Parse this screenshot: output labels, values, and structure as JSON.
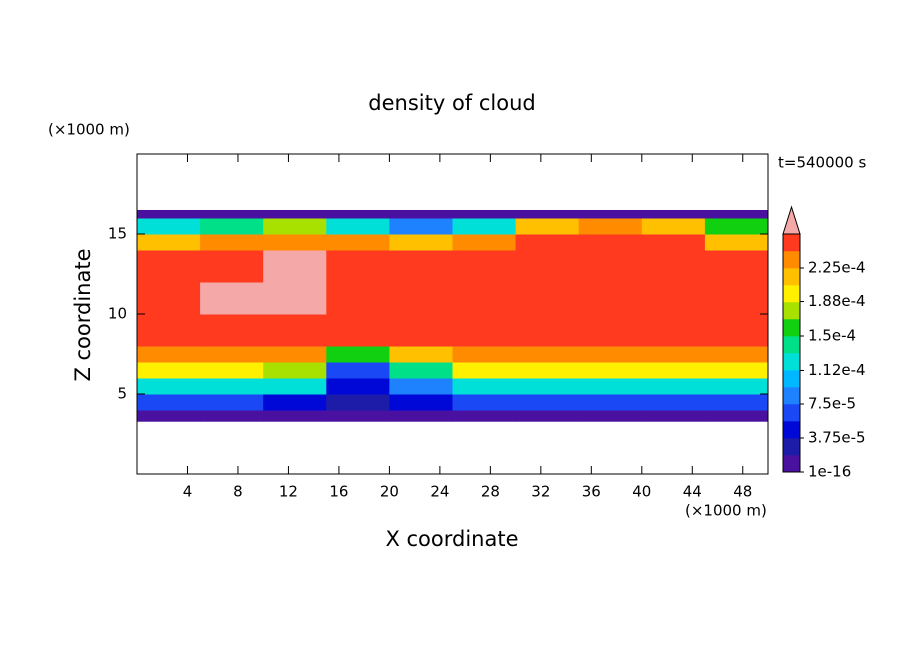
{
  "chart_data": {
    "type": "contour",
    "title": "density of cloud",
    "x_label": "X coordinate",
    "y_label": "Z coordinate",
    "x_unit": "(×1000 m)",
    "y_unit": "(×1000 m)",
    "time_label": "t=540000 s",
    "xlim": [
      0,
      50
    ],
    "ylim": [
      0,
      20
    ],
    "xticks": [
      4,
      8,
      12,
      16,
      20,
      24,
      28,
      32,
      36,
      40,
      44,
      48
    ],
    "yticks": [
      5,
      10,
      15
    ],
    "x_edges": [
      0,
      5,
      10,
      15,
      20,
      25,
      30,
      35,
      40,
      45,
      50
    ],
    "z_edges": [
      3.3,
      4,
      5,
      6,
      7,
      8,
      10,
      12,
      14,
      15,
      16,
      16.5
    ],
    "z_values": [
      [
        1e-05,
        1e-05,
        1e-05,
        1e-05,
        1e-05,
        1e-05,
        1e-05,
        1e-05,
        1e-05,
        1e-05
      ],
      [
        6e-05,
        6e-05,
        5e-05,
        3e-05,
        4e-05,
        7e-05,
        7e-05,
        7e-05,
        7e-05,
        7e-05
      ],
      [
        0.00013,
        0.00013,
        0.00012,
        4e-05,
        8e-05,
        0.00013,
        0.00013,
        0.00013,
        0.00013,
        0.00013
      ],
      [
        0.00019,
        0.00019,
        0.00017,
        6e-05,
        0.00014,
        0.00019,
        0.00019,
        0.00019,
        0.00019,
        0.00019
      ],
      [
        0.00023,
        0.00023,
        0.00023,
        0.00015,
        0.00022,
        0.00023,
        0.00023,
        0.00023,
        0.00023,
        0.00023
      ],
      [
        0.00025,
        0.00025,
        0.00025,
        0.00025,
        0.00025,
        0.00025,
        0.00025,
        0.00025,
        0.00025,
        0.00025
      ],
      [
        0.00025,
        0.00027,
        0.00027,
        0.00025,
        0.00025,
        0.00025,
        0.00025,
        0.00025,
        0.00025,
        0.00025
      ],
      [
        0.00025,
        0.00025,
        0.00027,
        0.00025,
        0.00025,
        0.00025,
        0.00025,
        0.00025,
        0.00025,
        0.00025
      ],
      [
        0.00021,
        0.00023,
        0.00024,
        0.00024,
        0.00021,
        0.00023,
        0.00025,
        0.00025,
        0.00025,
        0.00022
      ],
      [
        0.00012,
        0.00014,
        0.00018,
        0.00013,
        9e-05,
        0.00012,
        0.00022,
        0.00023,
        0.00022,
        0.00015
      ],
      [
        1e-05,
        1e-05,
        1e-05,
        1e-05,
        1e-05,
        1e-05,
        1e-05,
        1e-05,
        1e-05,
        1e-05
      ]
    ],
    "levels": [
      1e-16,
      1.875e-05,
      3.75e-05,
      5.625e-05,
      7.5e-05,
      9.375e-05,
      0.0001125,
      0.00013125,
      0.00015,
      0.00016875,
      0.0001875,
      0.00020625,
      0.000225,
      0.00024375,
      0.0002625
    ],
    "colors": [
      "#4a10a0",
      "#1c1ca8",
      "#0008d8",
      "#1a48f4",
      "#1e82ff",
      "#00b8ff",
      "#00e0d8",
      "#00e088",
      "#10d010",
      "#a8e000",
      "#fff000",
      "#ffc000",
      "#ff8c00",
      "#ff3a1e"
    ],
    "extend_color": "#f4a8a8",
    "colorbar_ticks": [
      {
        "value": 1e-16,
        "label": "1e-16"
      },
      {
        "value": 3.75e-05,
        "label": "3.75e-5"
      },
      {
        "value": 7.5e-05,
        "label": "7.5e-5"
      },
      {
        "value": 0.000112,
        "label": "1.12e-4"
      },
      {
        "value": 0.00015,
        "label": "1.5e-4"
      },
      {
        "value": 0.000188,
        "label": "1.88e-4"
      },
      {
        "value": 0.000225,
        "label": "2.25e-4"
      }
    ]
  }
}
